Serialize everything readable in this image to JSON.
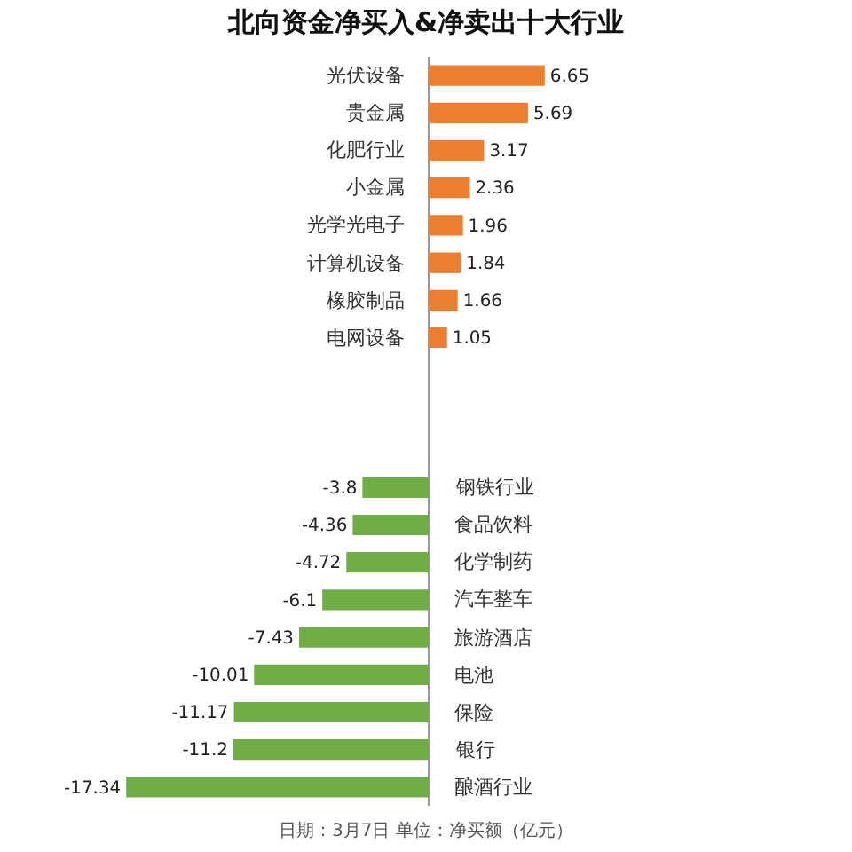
{
  "chart_data": {
    "type": "bar",
    "orientation": "horizontal",
    "title": "北向资金净买入&净卖出十大行业",
    "categories": [
      "光伏设备",
      "贵金属",
      "化肥行业",
      "小金属",
      "光学光电子",
      "计算机设备",
      "橡胶制品",
      "电网设备",
      null,
      null,
      null,
      "钢铁行业",
      "食品饮料",
      "化学制药",
      "汽车整车",
      "旅游酒店",
      "电池",
      "保险",
      "银行",
      "酿酒行业"
    ],
    "values": [
      6.65,
      5.69,
      3.17,
      2.36,
      1.96,
      1.84,
      1.66,
      1.05,
      null,
      null,
      null,
      -3.8,
      -4.36,
      -4.72,
      -6.1,
      -7.43,
      -10.01,
      -11.17,
      -11.2,
      -17.34
    ],
    "colors": [
      "#ed7d31",
      "#ed7d31",
      "#ed7d31",
      "#ed7d31",
      "#ed7d31",
      "#ed7d31",
      "#ed7d31",
      "#ed7d31",
      "#ed7d31",
      "#ed7d31",
      "#70ad47",
      "#70ad47",
      "#70ad47",
      "#70ad47",
      "#70ad47",
      "#70ad47",
      "#70ad47",
      "#70ad47",
      "#70ad47",
      "#70ad47"
    ],
    "data_labels": true,
    "annotations": [
      "日期：3月7日 单位：净买额（亿元）"
    ]
  }
}
